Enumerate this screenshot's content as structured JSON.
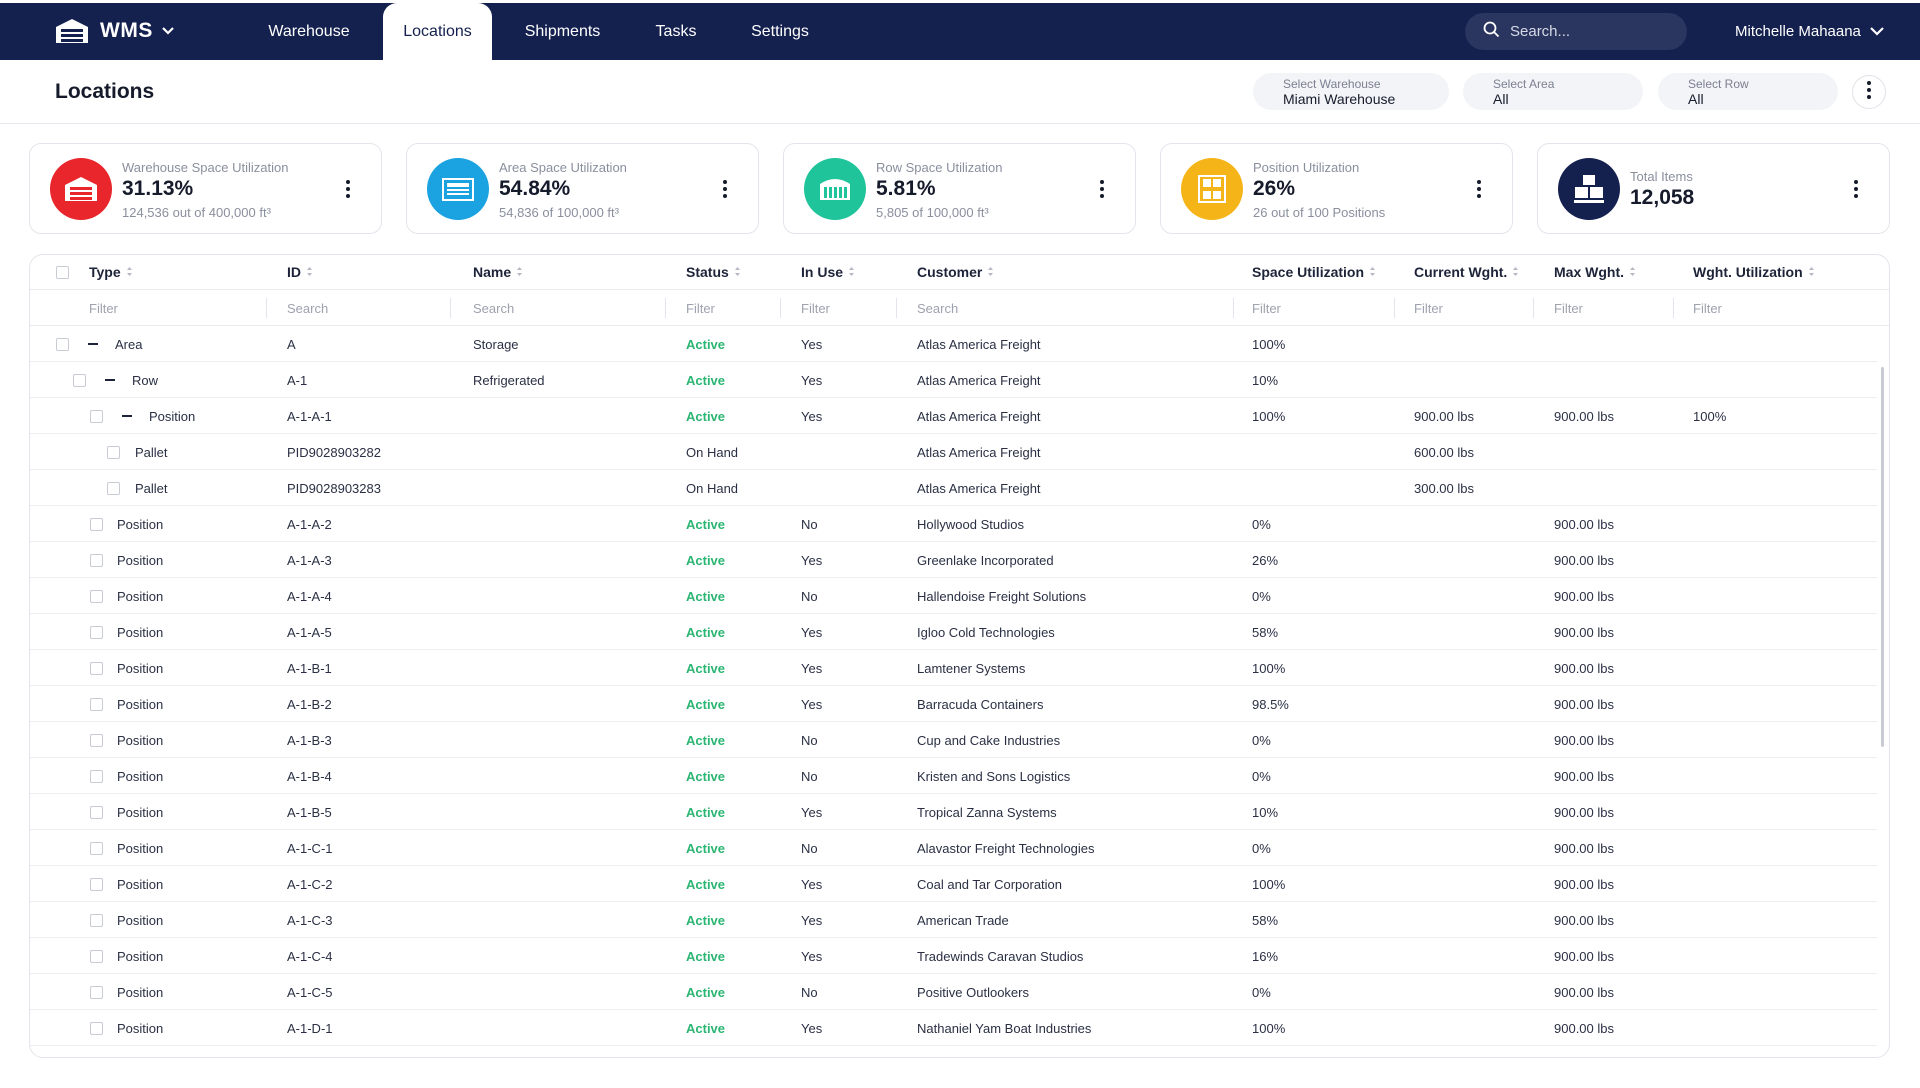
{
  "nav": {
    "logo_text": "WMS",
    "tabs": [
      {
        "label": "Warehouse"
      },
      {
        "label": "Locations"
      },
      {
        "label": "Shipments"
      },
      {
        "label": "Tasks"
      },
      {
        "label": "Settings"
      }
    ],
    "active_tab": "Locations",
    "search_placeholder": "Search...",
    "user_name": "Mitchelle Mahaana"
  },
  "header": {
    "title": "Locations",
    "selectors": [
      {
        "label": "Select Warehouse",
        "value": "Miami Warehouse"
      },
      {
        "label": "Select Area",
        "value": "All"
      },
      {
        "label": "Select Row",
        "value": "All"
      }
    ]
  },
  "cards": [
    {
      "label": "Warehouse Space Utilization",
      "value": "31.13%",
      "sub": "124,536 out of 400,000 ft³",
      "color": "#e8262c",
      "icon": "warehouse-icon"
    },
    {
      "label": "Area Space Utilization",
      "value": "54.84%",
      "sub": "54,836 of 100,000 ft³",
      "color": "#1aa3e0",
      "icon": "area-icon"
    },
    {
      "label": "Row Space Utilization",
      "value": "5.81%",
      "sub": "5,805 of 100,000 ft³",
      "color": "#1fc49b",
      "icon": "row-icon"
    },
    {
      "label": "Position Utilization",
      "value": "26%",
      "sub": "26 out of 100 Positions",
      "color": "#f5b519",
      "icon": "position-icon"
    },
    {
      "label": "Total Items",
      "value": "12,058",
      "sub": "",
      "color": "#14204e",
      "icon": "boxes-icon"
    }
  ],
  "table": {
    "columns": [
      "Type",
      "ID",
      "Name",
      "Status",
      "In Use",
      "Customer",
      "Space Utilization",
      "Current Wght.",
      "Max Wght.",
      "Wght. Utilization"
    ],
    "filters": [
      "Filter",
      "Search",
      "Search",
      "Filter",
      "Filter",
      "Search",
      "Filter",
      "Filter",
      "Filter",
      "Filter"
    ],
    "rows": [
      {
        "level": 0,
        "expand": true,
        "type": "Area",
        "id": "A",
        "name": "Storage",
        "status": "Active",
        "in_use": "Yes",
        "customer": "Atlas America Freight",
        "space": "100%",
        "cur": "",
        "max": "",
        "wutil": ""
      },
      {
        "level": 1,
        "expand": true,
        "type": "Row",
        "id": "A-1",
        "name": "Refrigerated",
        "status": "Active",
        "in_use": "Yes",
        "customer": "Atlas America Freight",
        "space": "10%",
        "cur": "",
        "max": "",
        "wutil": ""
      },
      {
        "level": 2,
        "expand": true,
        "type": "Position",
        "id": "A-1-A-1",
        "name": "",
        "status": "Active",
        "in_use": "Yes",
        "customer": "Atlas America Freight",
        "space": "100%",
        "cur": "900.00 lbs",
        "max": "900.00 lbs",
        "wutil": "100%"
      },
      {
        "level": 3,
        "expand": false,
        "type": "Pallet",
        "id": "PID9028903282",
        "name": "",
        "status": "On Hand",
        "in_use": "",
        "customer": "Atlas America Freight",
        "space": "",
        "cur": "600.00 lbs",
        "max": "",
        "wutil": ""
      },
      {
        "level": 3,
        "expand": false,
        "type": "Pallet",
        "id": "PID9028903283",
        "name": "",
        "status": "On Hand",
        "in_use": "",
        "customer": "Atlas America Freight",
        "space": "",
        "cur": "300.00 lbs",
        "max": "",
        "wutil": ""
      },
      {
        "level": 2,
        "expand": false,
        "type": "Position",
        "id": "A-1-A-2",
        "name": "",
        "status": "Active",
        "in_use": "No",
        "customer": "Hollywood Studios",
        "space": "0%",
        "cur": "",
        "max": "900.00 lbs",
        "wutil": ""
      },
      {
        "level": 2,
        "expand": false,
        "type": "Position",
        "id": "A-1-A-3",
        "name": "",
        "status": "Active",
        "in_use": "Yes",
        "customer": "Greenlake Incorporated",
        "space": "26%",
        "cur": "",
        "max": "900.00 lbs",
        "wutil": ""
      },
      {
        "level": 2,
        "expand": false,
        "type": "Position",
        "id": "A-1-A-4",
        "name": "",
        "status": "Active",
        "in_use": "No",
        "customer": "Hallendoise Freight Solutions",
        "space": "0%",
        "cur": "",
        "max": "900.00 lbs",
        "wutil": ""
      },
      {
        "level": 2,
        "expand": false,
        "type": "Position",
        "id": "A-1-A-5",
        "name": "",
        "status": "Active",
        "in_use": "Yes",
        "customer": "Igloo Cold Technologies",
        "space": "58%",
        "cur": "",
        "max": "900.00 lbs",
        "wutil": ""
      },
      {
        "level": 2,
        "expand": false,
        "type": "Position",
        "id": "A-1-B-1",
        "name": "",
        "status": "Active",
        "in_use": "Yes",
        "customer": "Lamtener Systems",
        "space": "100%",
        "cur": "",
        "max": "900.00 lbs",
        "wutil": ""
      },
      {
        "level": 2,
        "expand": false,
        "type": "Position",
        "id": "A-1-B-2",
        "name": "",
        "status": "Active",
        "in_use": "Yes",
        "customer": "Barracuda Containers",
        "space": "98.5%",
        "cur": "",
        "max": "900.00 lbs",
        "wutil": ""
      },
      {
        "level": 2,
        "expand": false,
        "type": "Position",
        "id": "A-1-B-3",
        "name": "",
        "status": "Active",
        "in_use": "No",
        "customer": "Cup and Cake Industries",
        "space": "0%",
        "cur": "",
        "max": "900.00 lbs",
        "wutil": ""
      },
      {
        "level": 2,
        "expand": false,
        "type": "Position",
        "id": "A-1-B-4",
        "name": "",
        "status": "Active",
        "in_use": "No",
        "customer": "Kristen and Sons Logistics",
        "space": "0%",
        "cur": "",
        "max": "900.00 lbs",
        "wutil": ""
      },
      {
        "level": 2,
        "expand": false,
        "type": "Position",
        "id": "A-1-B-5",
        "name": "",
        "status": "Active",
        "in_use": "Yes",
        "customer": "Tropical Zanna Systems",
        "space": "10%",
        "cur": "",
        "max": "900.00 lbs",
        "wutil": ""
      },
      {
        "level": 2,
        "expand": false,
        "type": "Position",
        "id": "A-1-C-1",
        "name": "",
        "status": "Active",
        "in_use": "No",
        "customer": "Alavastor Freight Technologies",
        "space": "0%",
        "cur": "",
        "max": "900.00 lbs",
        "wutil": ""
      },
      {
        "level": 2,
        "expand": false,
        "type": "Position",
        "id": "A-1-C-2",
        "name": "",
        "status": "Active",
        "in_use": "Yes",
        "customer": "Coal and Tar Corporation",
        "space": "100%",
        "cur": "",
        "max": "900.00 lbs",
        "wutil": ""
      },
      {
        "level": 2,
        "expand": false,
        "type": "Position",
        "id": "A-1-C-3",
        "name": "",
        "status": "Active",
        "in_use": "Yes",
        "customer": "American Trade",
        "space": "58%",
        "cur": "",
        "max": "900.00 lbs",
        "wutil": ""
      },
      {
        "level": 2,
        "expand": false,
        "type": "Position",
        "id": "A-1-C-4",
        "name": "",
        "status": "Active",
        "in_use": "Yes",
        "customer": "Tradewinds Caravan Studios",
        "space": "16%",
        "cur": "",
        "max": "900.00 lbs",
        "wutil": ""
      },
      {
        "level": 2,
        "expand": false,
        "type": "Position",
        "id": "A-1-C-5",
        "name": "",
        "status": "Active",
        "in_use": "No",
        "customer": "Positive Outlookers",
        "space": "0%",
        "cur": "",
        "max": "900.00 lbs",
        "wutil": ""
      },
      {
        "level": 2,
        "expand": false,
        "type": "Position",
        "id": "A-1-D-1",
        "name": "",
        "status": "Active",
        "in_use": "Yes",
        "customer": "Nathaniel Yam Boat Industries",
        "space": "100%",
        "cur": "",
        "max": "900.00 lbs",
        "wutil": ""
      }
    ]
  },
  "colors": {
    "nav_bg": "#14204e",
    "active_status": "#2bb673"
  }
}
